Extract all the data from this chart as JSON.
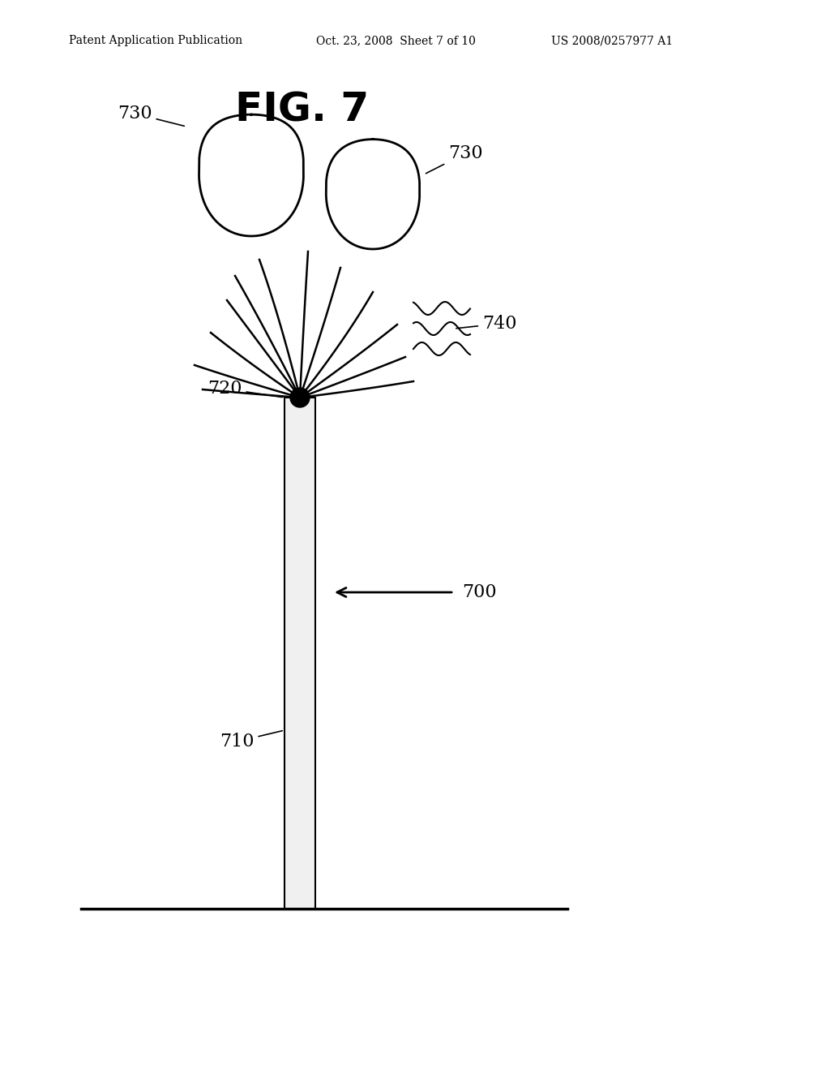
{
  "bg_color": "#ffffff",
  "line_color": "#000000",
  "header_left": "Patent Application Publication",
  "header_mid": "Oct. 23, 2008  Sheet 7 of 10",
  "header_right": "US 2008/0257977 A1",
  "fig_label": "FIG. 7",
  "labels": {
    "730_left": "730",
    "730_right": "730",
    "740": "740",
    "720": "720",
    "710": "710",
    "700": "700"
  }
}
